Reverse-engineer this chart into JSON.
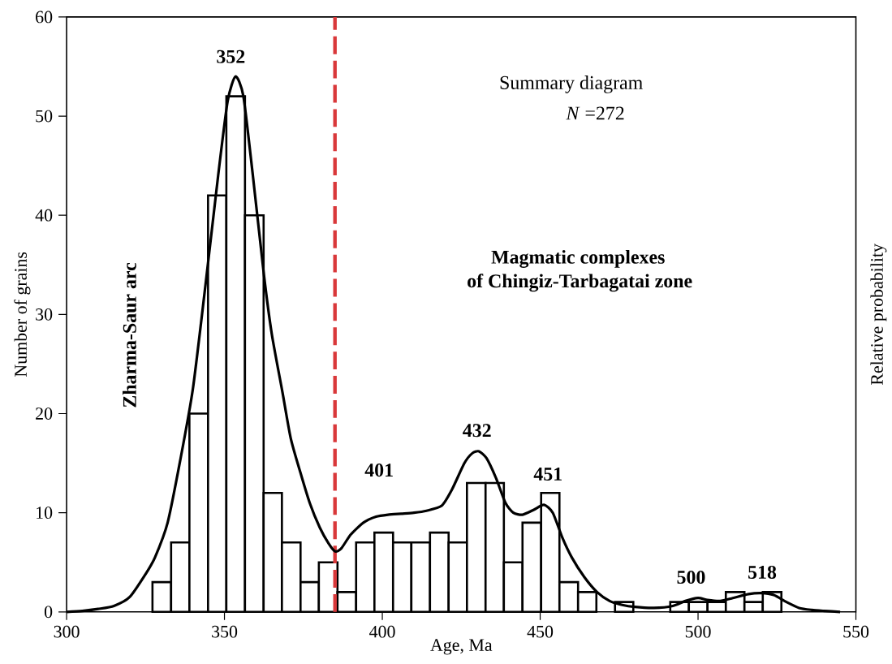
{
  "chart_data": {
    "type": "histogram",
    "xlabel": "Age, Ma",
    "ylabel": "Number of grains",
    "y2label": "Relative probability",
    "bins": [
      327.2,
      333.1,
      338.9,
      344.8,
      350.6,
      356.5,
      362.4,
      368.2,
      374.1,
      379.9,
      385.8,
      391.7,
      397.5,
      403.4,
      409.2,
      415.1,
      421.0,
      426.8,
      432.7,
      438.5,
      444.4,
      450.3,
      456.1,
      462.0,
      467.8,
      473.7,
      479.5,
      485.4,
      491.2,
      497.1,
      503.0,
      508.8,
      514.7,
      520.5,
      526.4
    ],
    "values": [
      3,
      7,
      20,
      42,
      52,
      40,
      12,
      7,
      3,
      5,
      2,
      7,
      8,
      7,
      7,
      8,
      7,
      13,
      13,
      5,
      9,
      12,
      3,
      2,
      0,
      1,
      0,
      0,
      1,
      1,
      1,
      2,
      1,
      2
    ],
    "color": "#ffffff",
    "series": [
      {
        "type": "line",
        "color": "#000000",
        "x": [
          300,
          305,
          310,
          315,
          320,
          325,
          328,
          332,
          336,
          340,
          344,
          348,
          351,
          353.5,
          356,
          359,
          362.5,
          365,
          368.4,
          371,
          374.2,
          377,
          380.2,
          383,
          385.1,
          387,
          390,
          394,
          398,
          401.8,
          406,
          410,
          414,
          418.8,
          422,
          426,
          428.5,
          430.6,
          433,
          436,
          439,
          441.5,
          444.4,
          448,
          451.2,
          454,
          457,
          460,
          464,
          468,
          472,
          476,
          480,
          486,
          492,
          496,
          500,
          503,
          507,
          511,
          516,
          520,
          524,
          528,
          532,
          536,
          540,
          545
        ],
        "values": [
          0,
          0.1,
          0.3,
          0.6,
          1.5,
          3.8,
          5.5,
          9,
          15.3,
          22.5,
          33,
          44,
          51.5,
          54,
          52,
          44,
          34,
          28,
          22.1,
          17.5,
          13.9,
          11,
          8.5,
          6.9,
          6.1,
          6.4,
          7.8,
          9,
          9.6,
          9.8,
          9.9,
          10,
          10.2,
          10.7,
          12.3,
          15,
          16,
          16.2,
          15.5,
          13.5,
          11,
          10,
          9.8,
          10.3,
          10.8,
          10,
          7.5,
          5.5,
          3.5,
          2,
          1.1,
          0.7,
          0.5,
          0.4,
          0.6,
          1.1,
          1.4,
          1.2,
          1.1,
          1.4,
          1.8,
          1.9,
          1.7,
          1,
          0.4,
          0.2,
          0.1,
          0
        ]
      }
    ],
    "xlim": [
      300,
      550
    ],
    "xticks": [
      300,
      350,
      400,
      450,
      500,
      550
    ],
    "ylim": [
      0,
      60
    ],
    "yticks": [
      0,
      10,
      20,
      30,
      40,
      50,
      60
    ],
    "grid": false,
    "ref_lines": [
      {
        "axis": "x",
        "value": 385,
        "color": "#d9383a",
        "line_style": "dashed"
      }
    ],
    "annotations": [
      "352",
      "401",
      "432",
      "451",
      "500",
      "518",
      "Summary diagram",
      "*N* =272",
      "Magmatic complexes",
      "of  Chingiz-Tarbagatai zone",
      "Zharma-Saur arc"
    ]
  }
}
